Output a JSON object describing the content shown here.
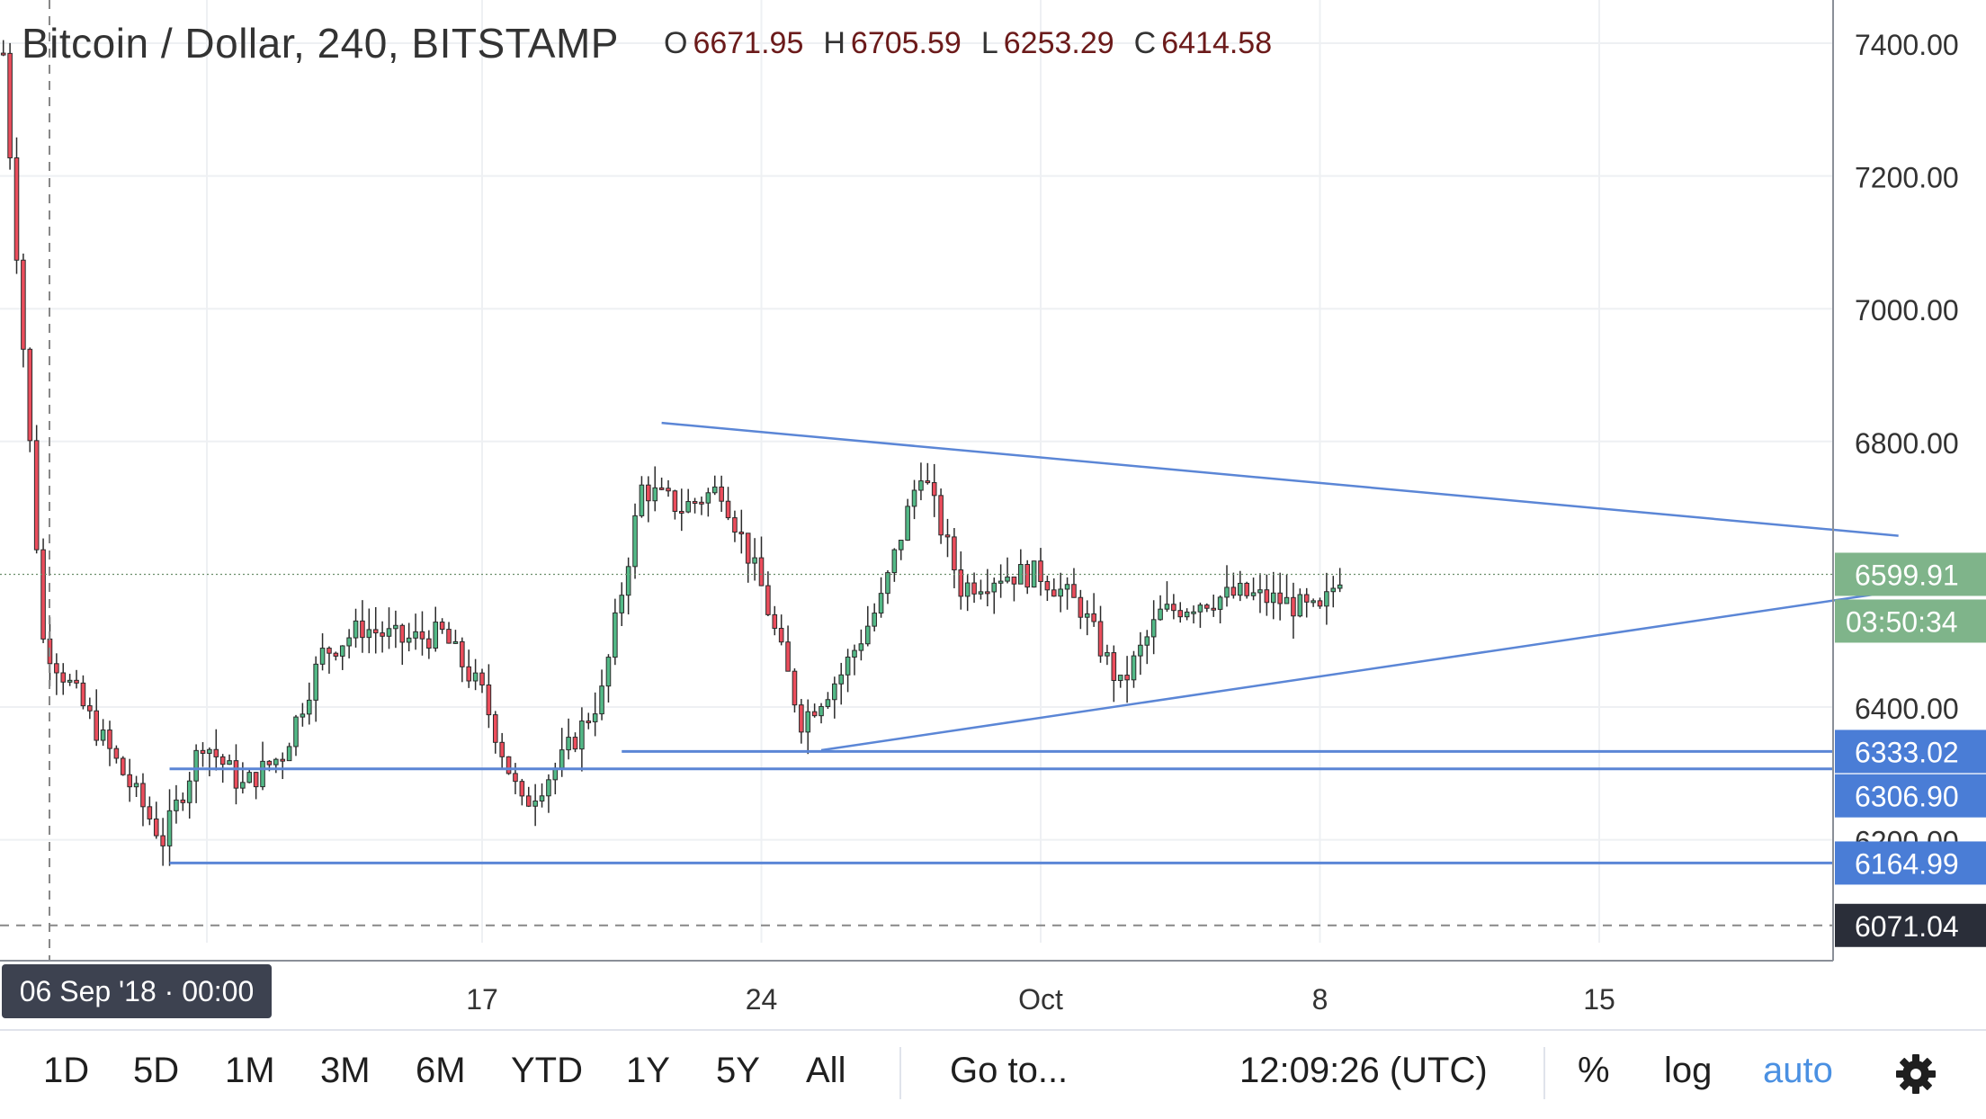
{
  "header": {
    "symbol": "Bitcoin / Dollar, 240, BITSTAMP",
    "ohlc": [
      {
        "key": "O",
        "value": "6671.95"
      },
      {
        "key": "H",
        "value": "6705.59"
      },
      {
        "key": "L",
        "value": "6253.29"
      },
      {
        "key": "C",
        "value": "6414.58"
      }
    ]
  },
  "chart_data": {
    "type": "candlestick",
    "title": "Bitcoin / Dollar, 240, BITSTAMP",
    "y_ticks": [
      "7400.00",
      "7200.00",
      "7000.00",
      "6800.00",
      "6400.00",
      "6200.00"
    ],
    "y_range": [
      6030,
      7420
    ],
    "x_ticks": [
      "17",
      "24",
      "Oct",
      "8",
      "15"
    ],
    "crosshair_date_label": "06 Sep '18 · 00:00",
    "crosshair_price": "6071.04",
    "last_price": "6599.91",
    "countdown": "03:50:34",
    "horizontal_levels": [
      {
        "label": "6333.02",
        "value": 6333.02
      },
      {
        "label": "6306.90",
        "value": 6306.9
      },
      {
        "label": "6164.99",
        "value": 6164.99
      }
    ],
    "trendlines": [
      {
        "name": "upper",
        "start": {
          "date": "2018-09-21T12:00",
          "price": 6828
        },
        "end": {
          "date": "2018-10-22T12:00",
          "price": 6658
        }
      },
      {
        "name": "lower",
        "start": {
          "date": "2018-09-25T12:00",
          "price": 6335
        },
        "end": {
          "date": "2018-10-22T12:00",
          "price": 6575
        }
      }
    ],
    "anchors": [
      {
        "date": "2018-09-05",
        "price": 7385
      },
      {
        "date": "2018-09-06",
        "price": 6500
      },
      {
        "date": "2018-09-07",
        "price": 6400
      },
      {
        "date": "2018-09-08",
        "price": 6300
      },
      {
        "date": "2018-09-09",
        "price": 6200
      },
      {
        "date": "2018-09-10",
        "price": 6350
      },
      {
        "date": "2018-09-11",
        "price": 6280
      },
      {
        "date": "2018-09-12",
        "price": 6330
      },
      {
        "date": "2018-09-13",
        "price": 6480
      },
      {
        "date": "2018-09-14",
        "price": 6520
      },
      {
        "date": "2018-09-15",
        "price": 6500
      },
      {
        "date": "2018-09-16",
        "price": 6510
      },
      {
        "date": "2018-09-17",
        "price": 6420
      },
      {
        "date": "2018-09-18",
        "price": 6250
      },
      {
        "date": "2018-09-19",
        "price": 6320
      },
      {
        "date": "2018-09-20",
        "price": 6420
      },
      {
        "date": "2018-09-21",
        "price": 6730
      },
      {
        "date": "2018-09-22",
        "price": 6700
      },
      {
        "date": "2018-09-23",
        "price": 6730
      },
      {
        "date": "2018-09-24",
        "price": 6580
      },
      {
        "date": "2018-09-25",
        "price": 6380
      },
      {
        "date": "2018-09-26",
        "price": 6450
      },
      {
        "date": "2018-09-27",
        "price": 6560
      },
      {
        "date": "2018-09-28",
        "price": 6760
      },
      {
        "date": "2018-09-29",
        "price": 6580
      },
      {
        "date": "2018-09-30",
        "price": 6600
      },
      {
        "date": "2018-10-01",
        "price": 6600
      },
      {
        "date": "2018-10-02",
        "price": 6550
      },
      {
        "date": "2018-10-03",
        "price": 6430
      },
      {
        "date": "2018-10-04",
        "price": 6540
      },
      {
        "date": "2018-10-05",
        "price": 6560
      },
      {
        "date": "2018-10-06",
        "price": 6570
      },
      {
        "date": "2018-10-07",
        "price": 6560
      },
      {
        "date": "2018-10-08",
        "price": 6540
      },
      {
        "date": "2018-10-08T12:00",
        "price": 6600
      }
    ],
    "colors": {
      "up": "#53b987",
      "down": "#eb4d5c",
      "line": "#5b86d6",
      "grid": "#eef0f3",
      "last_price_bg": "#7fb48a",
      "level_bg": "#4a7dd6",
      "axis_text": "#333333"
    }
  },
  "bottom_toolbar": {
    "ranges": [
      "1D",
      "5D",
      "1M",
      "3M",
      "6M",
      "YTD",
      "1Y",
      "5Y",
      "All"
    ],
    "goto": "Go to...",
    "clock": "12:09:26 (UTC)",
    "percent": "%",
    "log": "log",
    "auto": "auto",
    "settings_icon": "gear-icon"
  }
}
